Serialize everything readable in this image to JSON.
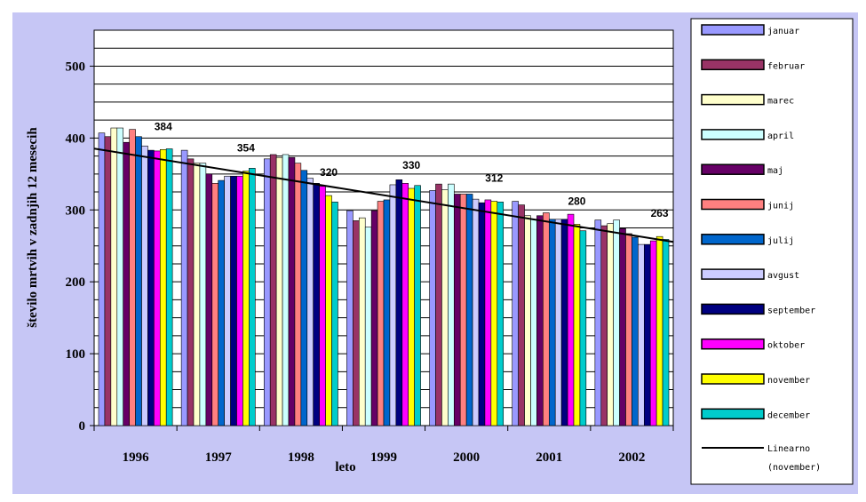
{
  "chart_data": {
    "type": "bar",
    "ylabel": "število mrtvih v zadnjih 12 mesecih",
    "xlabel": "leto",
    "ylim": [
      0,
      550
    ],
    "yticks": [
      0,
      100,
      200,
      300,
      400,
      500
    ],
    "grid": true,
    "legend_position": "right",
    "categories": [
      "1996",
      "1997",
      "1998",
      "1999",
      "2000",
      "2001",
      "2002"
    ],
    "series": [
      {
        "name": "januar",
        "color": "#9999ff",
        "values": [
          407,
          383,
          371,
          299,
          327,
          312,
          286
        ]
      },
      {
        "name": "februar",
        "color": "#993366",
        "values": [
          402,
          371,
          377,
          285,
          336,
          307,
          278
        ]
      },
      {
        "name": "marec",
        "color": "#ffffcc",
        "values": [
          414,
          365,
          373,
          289,
          328,
          292,
          281
        ]
      },
      {
        "name": "april",
        "color": "#ccffff",
        "values": [
          414,
          365,
          377,
          276,
          336,
          287,
          286
        ]
      },
      {
        "name": "maj",
        "color": "#660066",
        "values": [
          394,
          350,
          373,
          299,
          322,
          292,
          274
        ]
      },
      {
        "name": "junij",
        "color": "#ff8080",
        "values": [
          412,
          337,
          365,
          312,
          322,
          296,
          267
        ]
      },
      {
        "name": "julij",
        "color": "#0066cc",
        "values": [
          402,
          341,
          355,
          314,
          322,
          287,
          262
        ]
      },
      {
        "name": "avgust",
        "color": "#ccccff",
        "values": [
          389,
          347,
          344,
          335,
          315,
          287,
          252
        ]
      },
      {
        "name": "september",
        "color": "#000080",
        "values": [
          383,
          347,
          337,
          342,
          310,
          287,
          252
        ]
      },
      {
        "name": "oktober",
        "color": "#ff00ff",
        "values": [
          382,
          347,
          333,
          337,
          314,
          294,
          257
        ]
      },
      {
        "name": "november",
        "color": "#ffff00",
        "values": [
          384,
          354,
          320,
          330,
          312,
          280,
          263
        ]
      },
      {
        "name": "december",
        "color": "#00cccc",
        "values": [
          385,
          358,
          311,
          334,
          311,
          271,
          259
        ]
      }
    ],
    "data_labels": [
      "384",
      "354",
      "320",
      "330",
      "312",
      "280",
      "263"
    ],
    "trendline": {
      "name": "Linearno (november)",
      "series": "november",
      "type": "linear"
    }
  },
  "legend": {
    "trend_label_line1": "Linearno",
    "trend_label_line2": "(november)"
  }
}
